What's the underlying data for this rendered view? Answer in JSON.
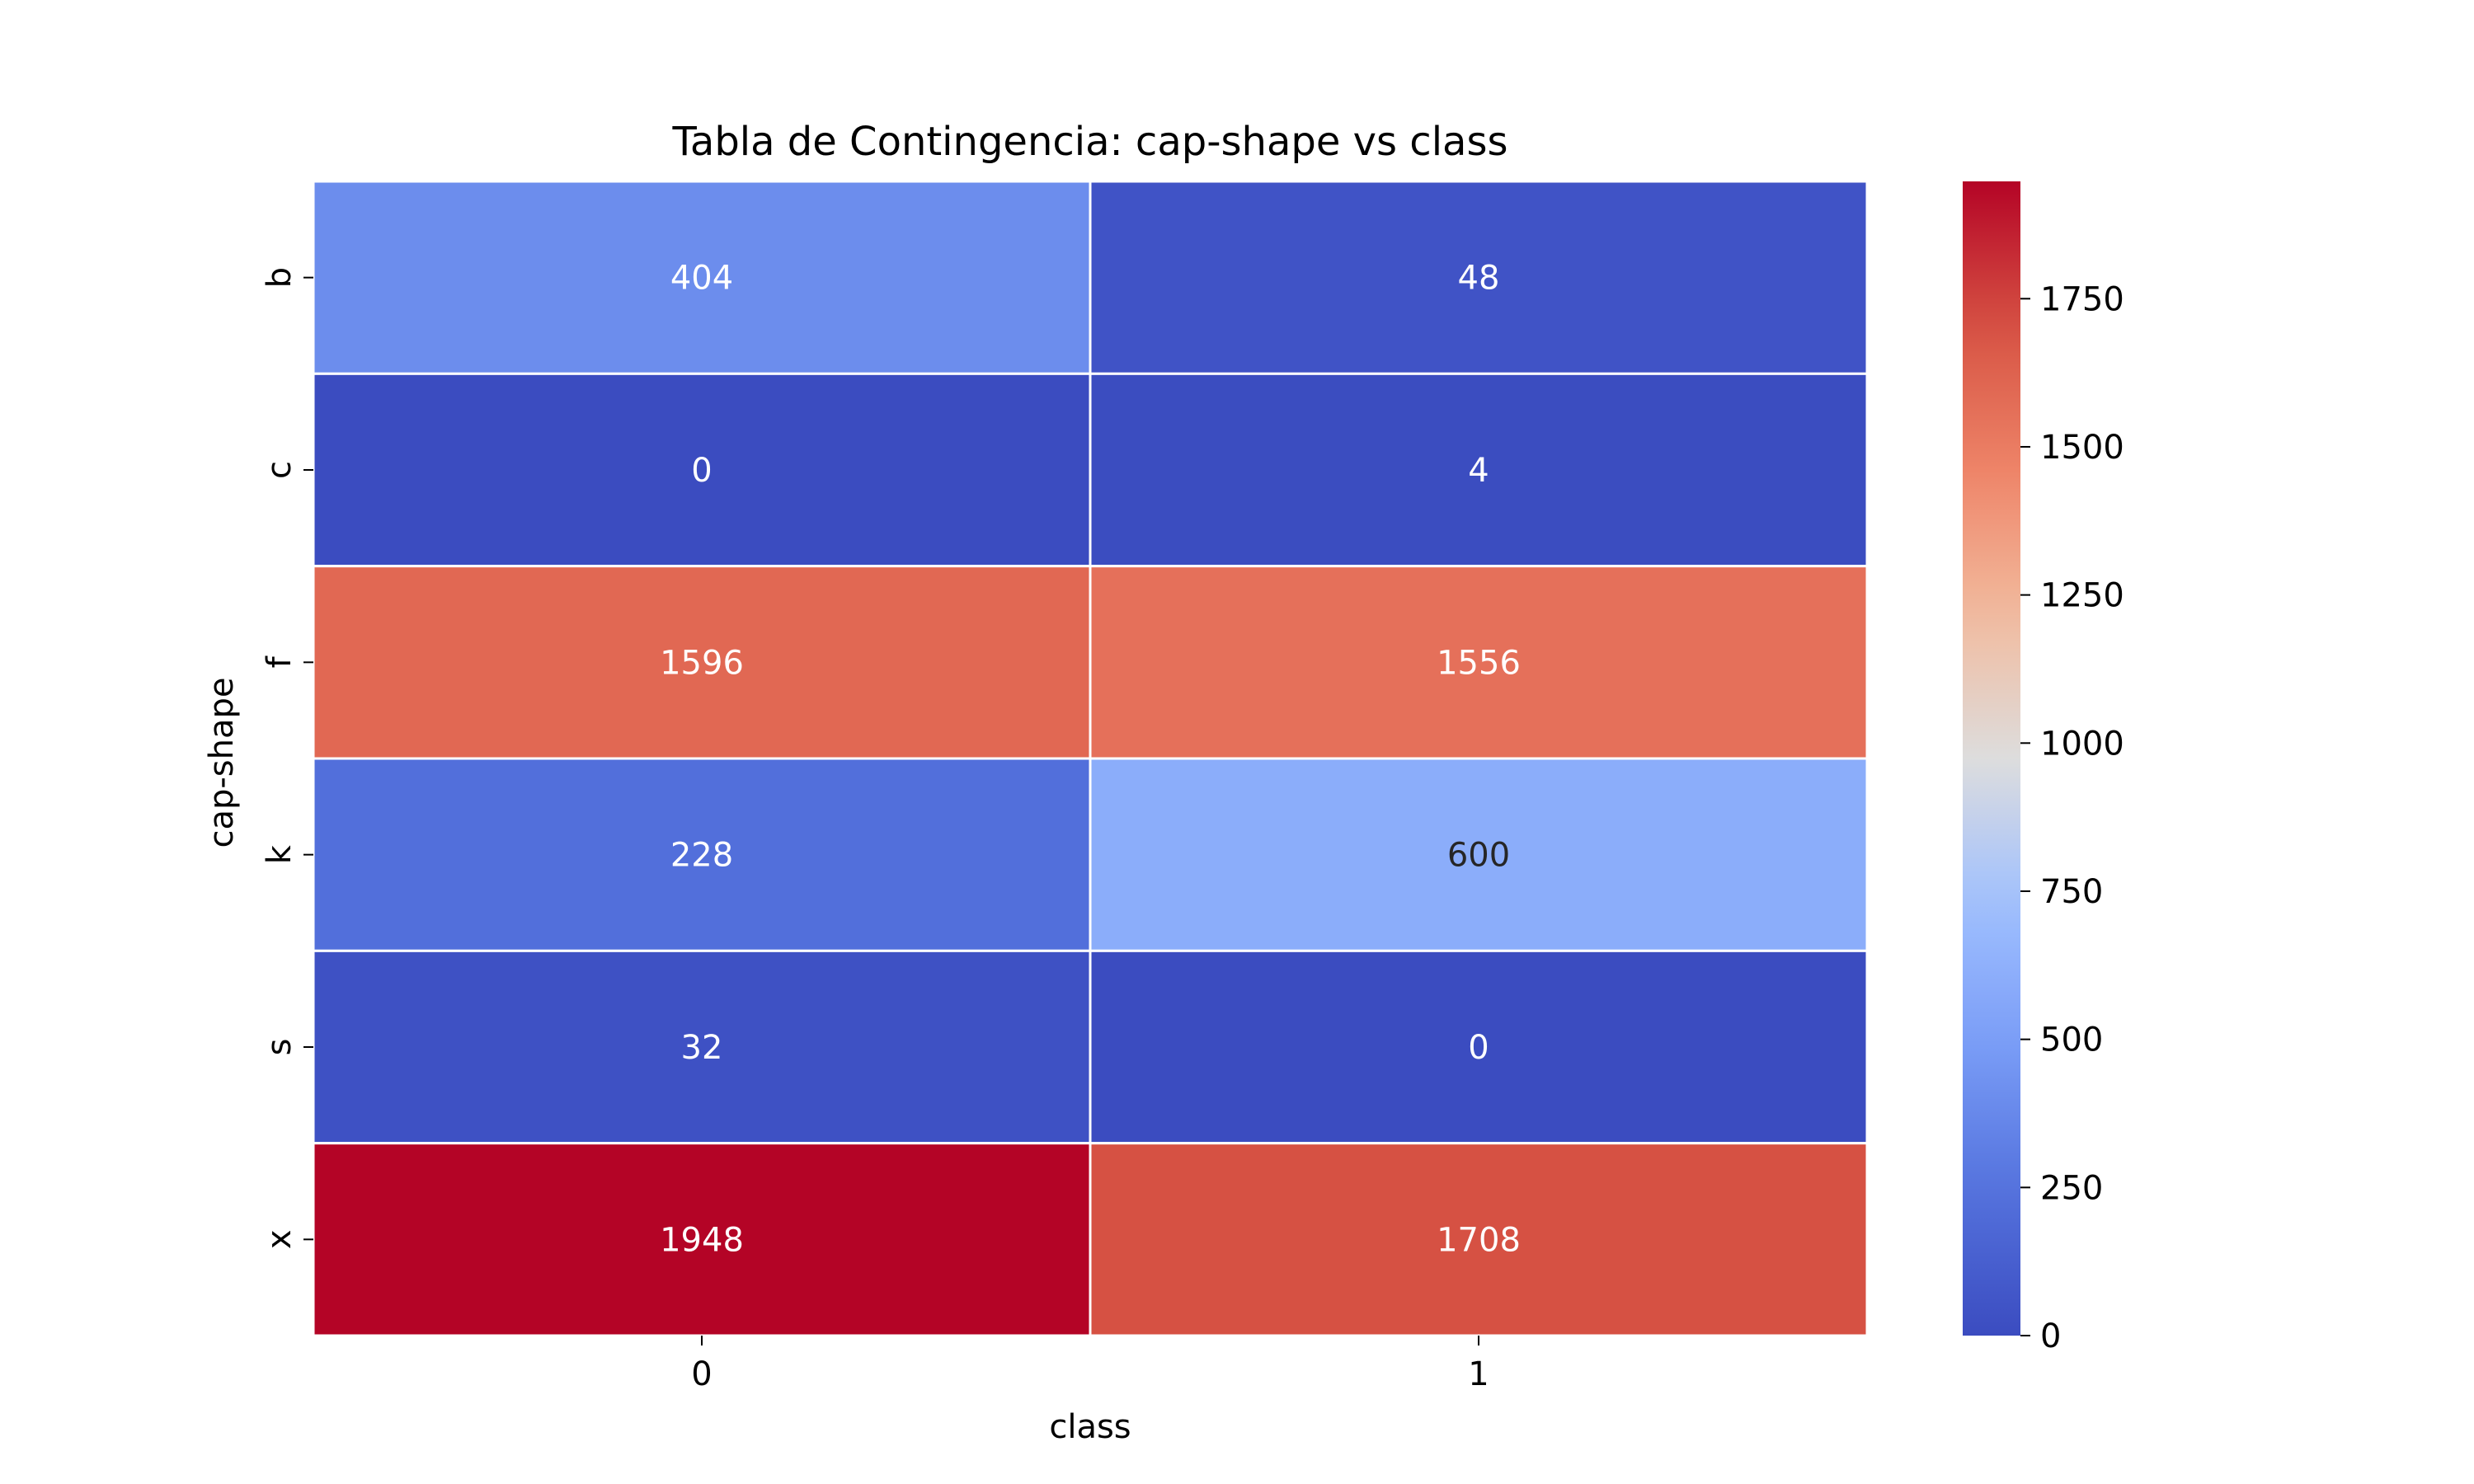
{
  "chart_data": {
    "type": "heatmap",
    "title": "Tabla de Contingencia: cap-shape vs class",
    "xlabel": "class",
    "ylabel": "cap-shape",
    "x_categories": [
      "0",
      "1"
    ],
    "y_categories": [
      "b",
      "c",
      "f",
      "k",
      "s",
      "x"
    ],
    "values": [
      [
        404,
        48
      ],
      [
        0,
        4
      ],
      [
        1596,
        1556
      ],
      [
        228,
        600
      ],
      [
        32,
        0
      ],
      [
        1948,
        1708
      ]
    ],
    "colormap": "coolwarm",
    "vmin": 0,
    "vmax": 1948,
    "colorbar_ticks": [
      0,
      250,
      500,
      750,
      1000,
      1250,
      1500,
      1750
    ],
    "annotations": true,
    "cell_border_color": "#ffffff"
  }
}
